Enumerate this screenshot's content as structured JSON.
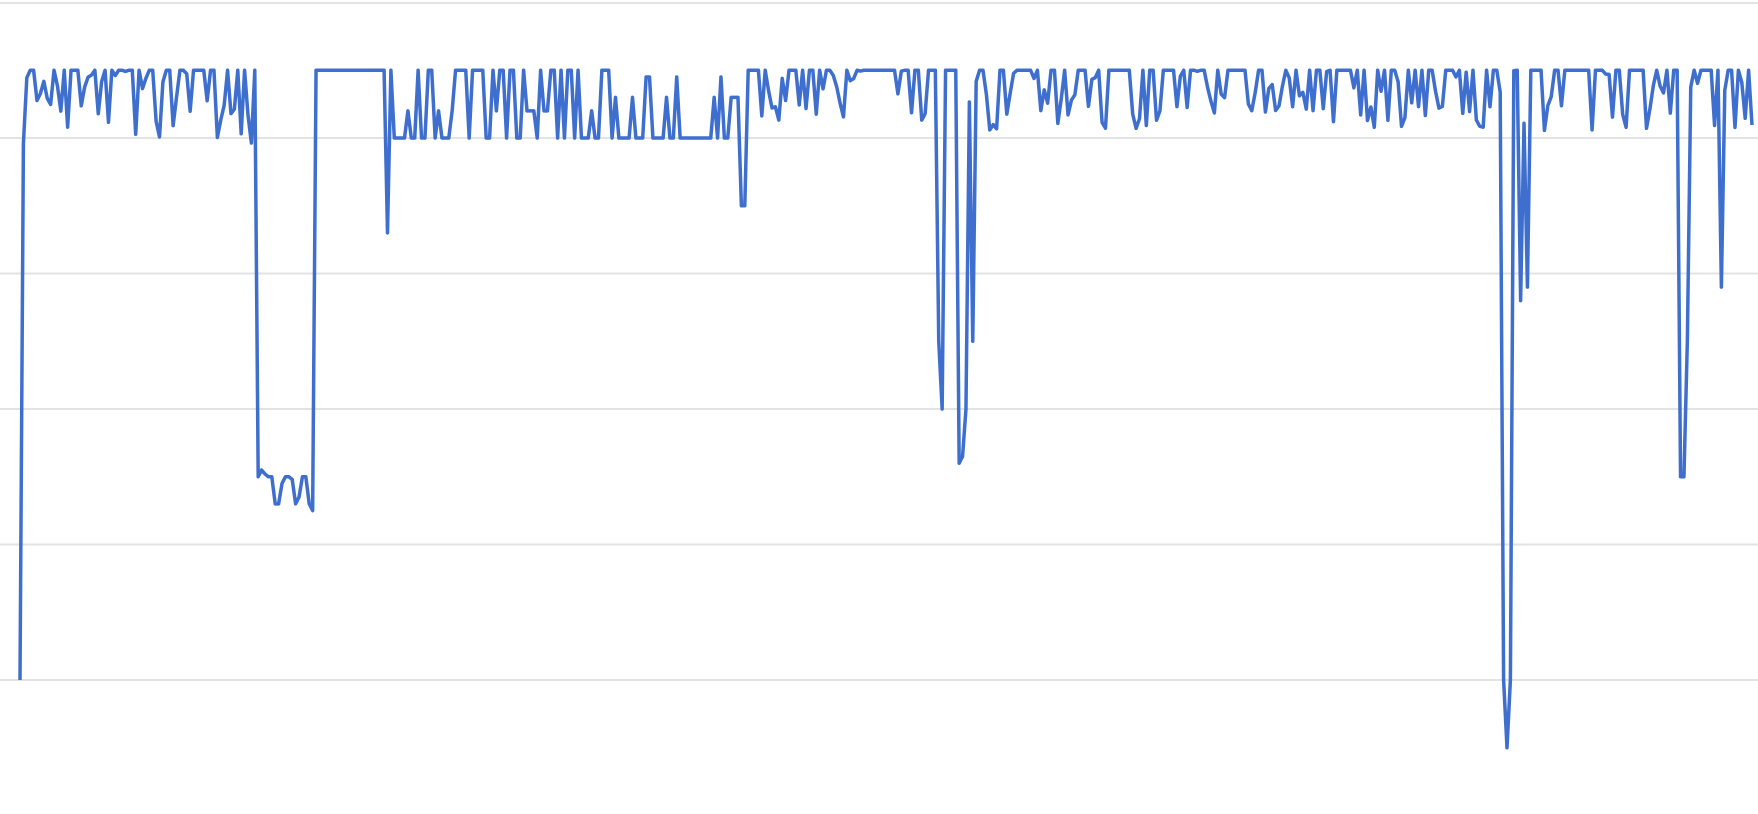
{
  "chart_data": {
    "type": "line",
    "title": "",
    "xlabel": "",
    "ylabel": "",
    "grid": true,
    "legend": "none",
    "ylim": [
      -0.5,
      4.5
    ],
    "gridlines": [
      0,
      1,
      2,
      3,
      4
    ],
    "x_count": 510,
    "series": [
      {
        "color": "#3f6fce",
        "spikes": [
          [
            0,
            0
          ],
          [
            70,
            1.5
          ],
          [
            71,
            1.55
          ],
          [
            72,
            1.52
          ],
          [
            73,
            1.5
          ],
          [
            74,
            1.5
          ],
          [
            75,
            1.3
          ],
          [
            76,
            1.3
          ],
          [
            77,
            1.45
          ],
          [
            78,
            1.5
          ],
          [
            79,
            1.5
          ],
          [
            80,
            1.48
          ],
          [
            81,
            1.3
          ],
          [
            82,
            1.35
          ],
          [
            83,
            1.5
          ],
          [
            84,
            1.5
          ],
          [
            85,
            1.3
          ],
          [
            86,
            1.25
          ],
          [
            108,
            3.3
          ],
          [
            212,
            3.5
          ],
          [
            213,
            3.5
          ],
          [
            270,
            2.5
          ],
          [
            271,
            2.0
          ],
          [
            276,
            1.6
          ],
          [
            277,
            1.65
          ],
          [
            278,
            2.0
          ],
          [
            280,
            2.5
          ],
          [
            436,
            0.0
          ],
          [
            437,
            -0.5
          ],
          [
            438,
            0.0
          ],
          [
            441,
            2.8
          ],
          [
            443,
            2.9
          ],
          [
            488,
            1.5
          ],
          [
            489,
            1.5
          ],
          [
            490,
            2.5
          ],
          [
            500,
            2.9
          ]
        ]
      }
    ]
  }
}
